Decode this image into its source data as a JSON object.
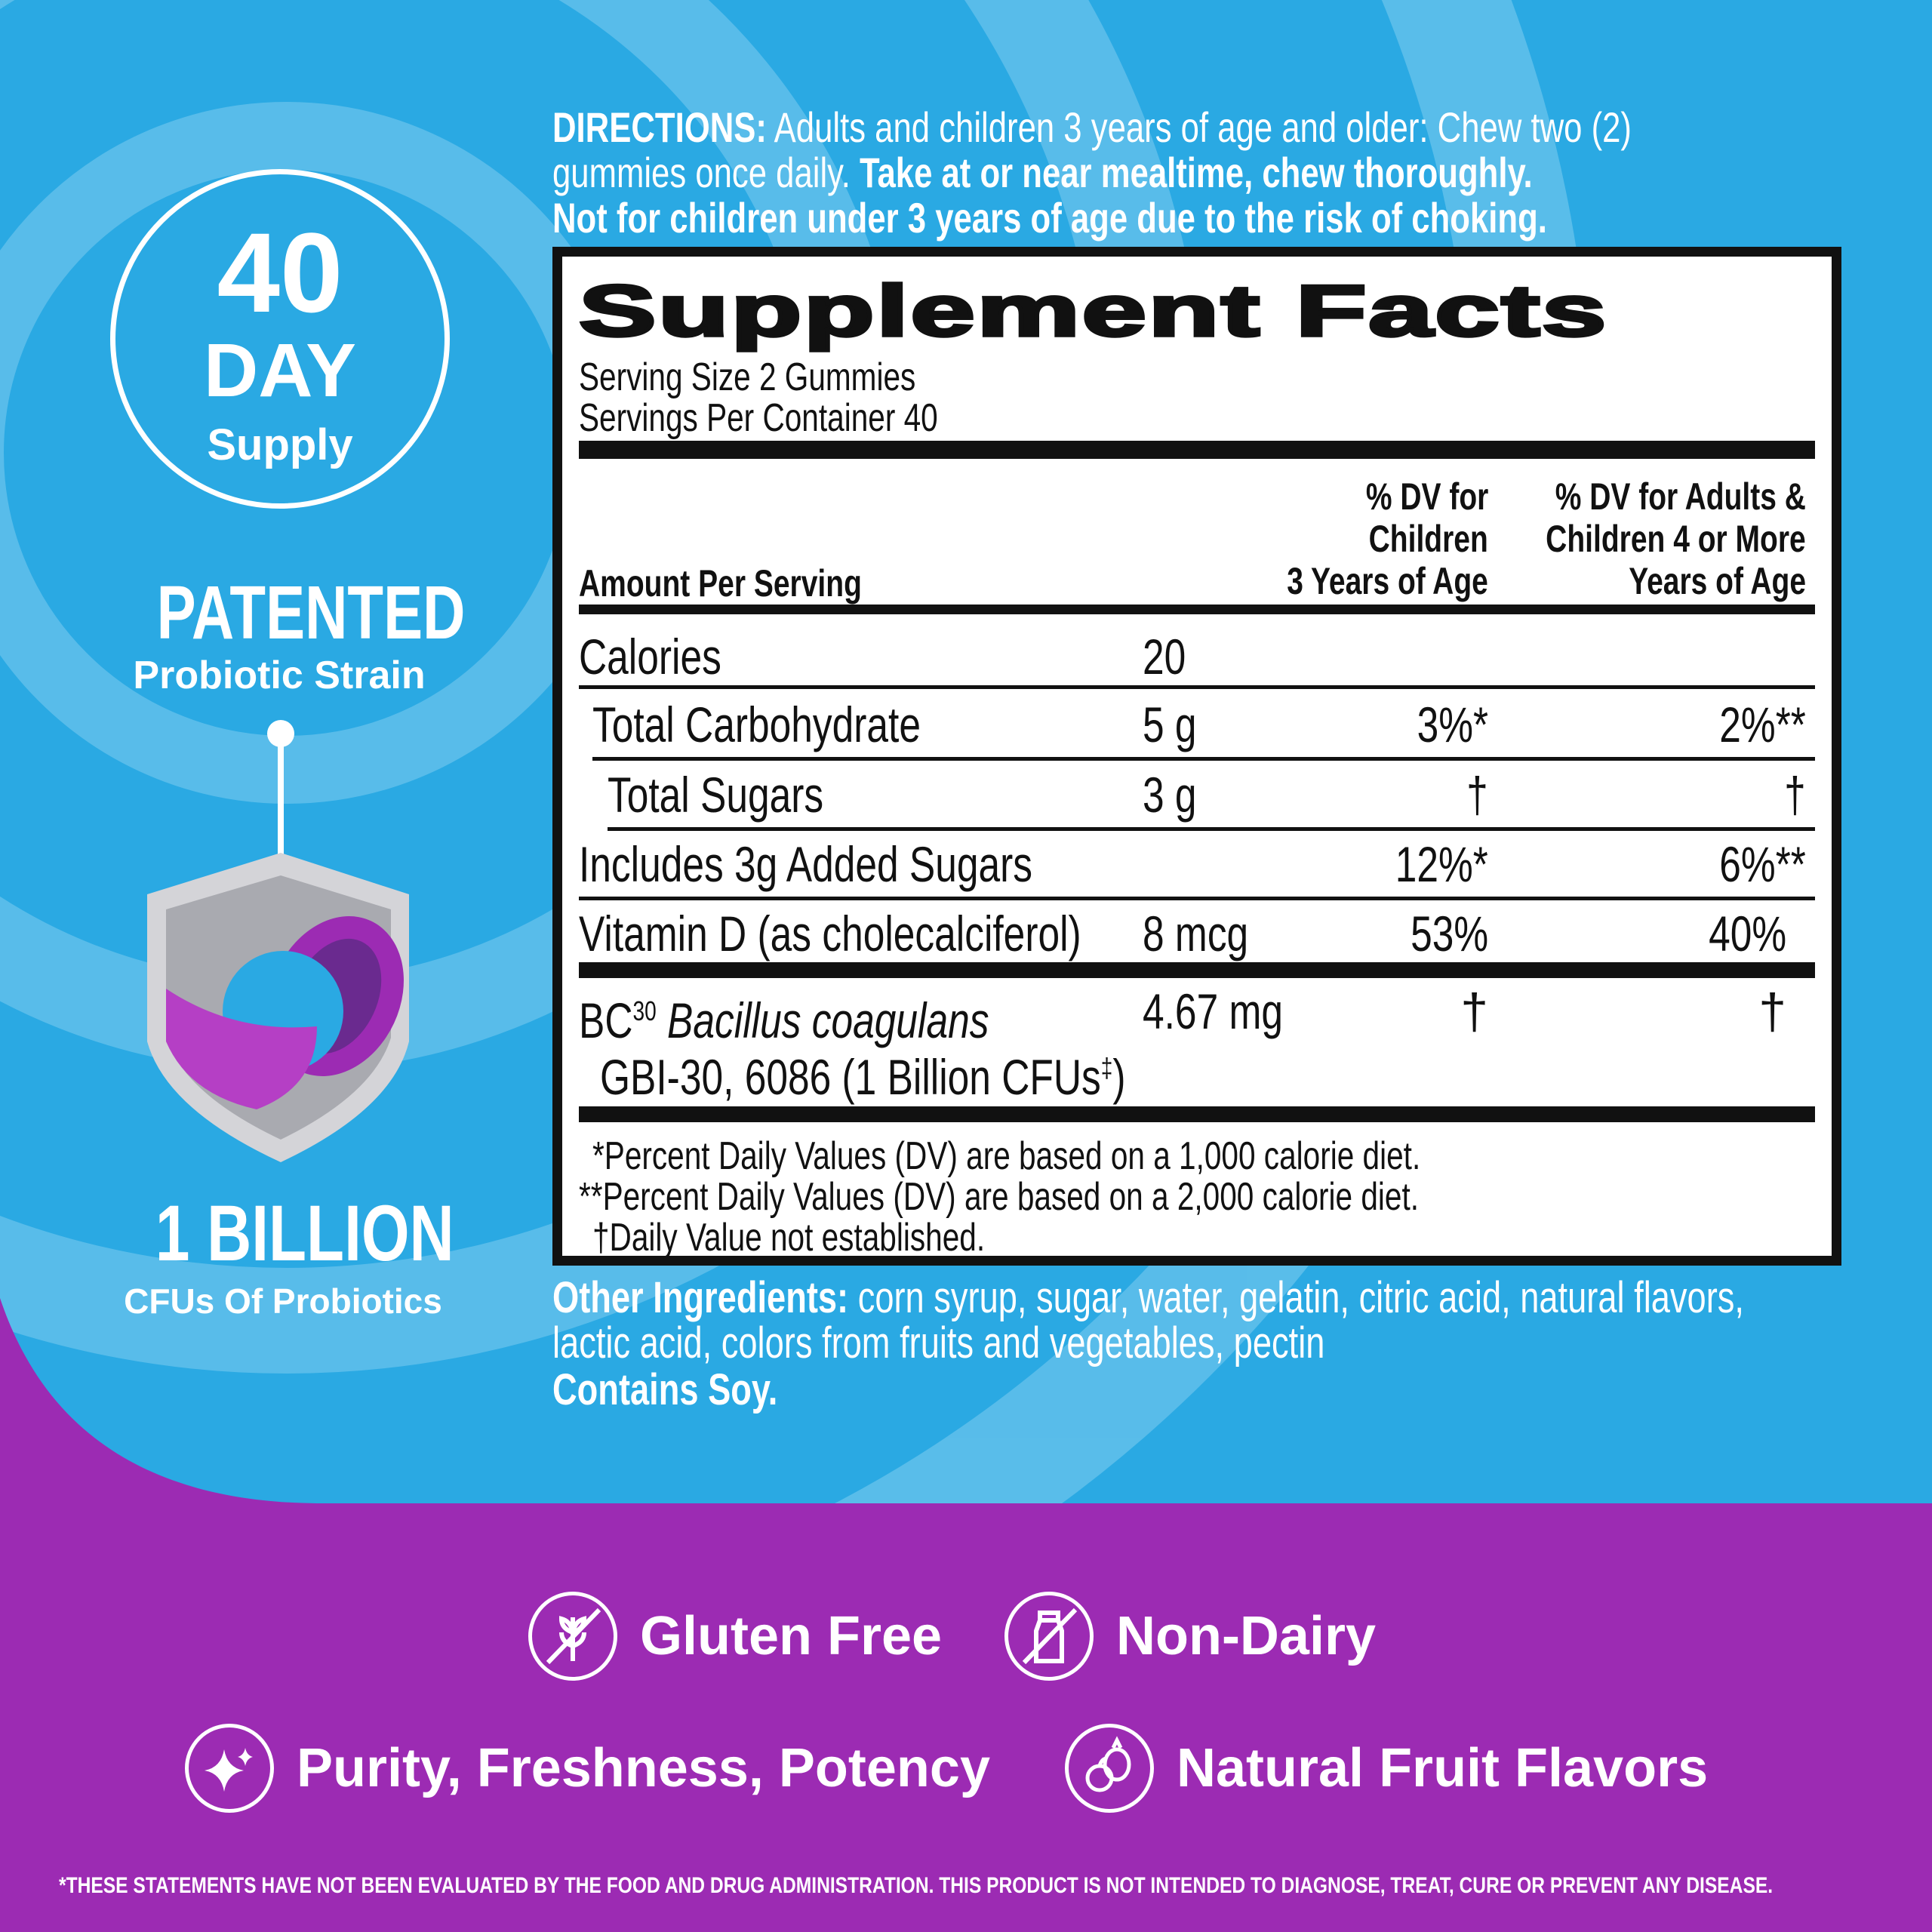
{
  "colors": {
    "blue": "#2aa9e3",
    "purple": "#9c2bb3",
    "ink": "#111111",
    "white": "#ffffff"
  },
  "directions": {
    "label": "DIRECTIONS:",
    "line1": "Adults and children 3 years of age and older: Chew two (2)",
    "line2a": "gummies once daily.",
    "line2b": "Take at or near mealtime, chew thoroughly.",
    "line3": "Not for children under 3 years of age due to the risk of choking."
  },
  "left": {
    "days": "40",
    "day_label": "DAY",
    "supply": "Supply",
    "patented": "PATENTED",
    "strain": "Probiotic Strain",
    "billion": "1 BILLION",
    "cfus": "CFUs Of Probiotics"
  },
  "facts": {
    "title": "Supplement Facts",
    "serving_size": "Serving Size 2 Gummies",
    "servings_per_container": "Servings Per Container 40",
    "amount_header": "Amount Per Serving",
    "col_children": [
      "% DV for",
      "Children",
      "3 Years of Age"
    ],
    "col_adults": [
      "% DV for Adults &",
      "Children 4 or More",
      "Years of Age"
    ],
    "rows": [
      {
        "name": "Calories",
        "amount": "20",
        "dv_children": "",
        "dv_adults": ""
      },
      {
        "name": "Total Carbohydrate",
        "amount": "5 g",
        "dv_children": "3%*",
        "dv_adults": "2%**"
      },
      {
        "name": "Total Sugars",
        "amount": "3 g",
        "dv_children": "†",
        "dv_adults": "†"
      },
      {
        "name": "Includes 3g Added Sugars",
        "amount": "",
        "dv_children": "12%*",
        "dv_adults": "6%**"
      },
      {
        "name": "Vitamin D (as cholecalciferol)",
        "amount": "8 mcg",
        "dv_children": "53%",
        "dv_adults": "40%"
      }
    ],
    "probiotic": {
      "prefix": "BC",
      "sup": "30",
      "species": "Bacillus coagulans",
      "strain": "GBI-30, 6086 (1 Billion CFUs",
      "strain_sup": "‡",
      "strain_end": ")",
      "amount": "4.67 mg",
      "dv_children": "†",
      "dv_adults": "†"
    },
    "footnotes": [
      "*Percent Daily Values (DV) are based on a 1,000 calorie diet.",
      "**Percent Daily Values (DV) are based on a 2,000 calorie diet.",
      "†Daily Value not established."
    ]
  },
  "ingredients": {
    "label": "Other Ingredients:",
    "line1": "corn syrup, sugar, water, gelatin, citric acid, natural flavors,",
    "line2": "lactic acid, colors from fruits and vegetables, pectin",
    "allergen": "Contains Soy."
  },
  "badges": [
    {
      "icon": "no-wheat-icon",
      "label": "Gluten Free"
    },
    {
      "icon": "no-milk-icon",
      "label": "Non-Dairy"
    },
    {
      "icon": "sparkle-icon",
      "label": "Purity, Freshness, Potency"
    },
    {
      "icon": "fruit-icon",
      "label": "Natural Fruit Flavors"
    }
  ],
  "disclaimer": "*THESE STATEMENTS HAVE NOT BEEN EVALUATED BY THE FOOD AND DRUG ADMINISTRATION. THIS PRODUCT IS NOT INTENDED TO DIAGNOSE, TREAT, CURE OR PREVENT ANY DISEASE."
}
